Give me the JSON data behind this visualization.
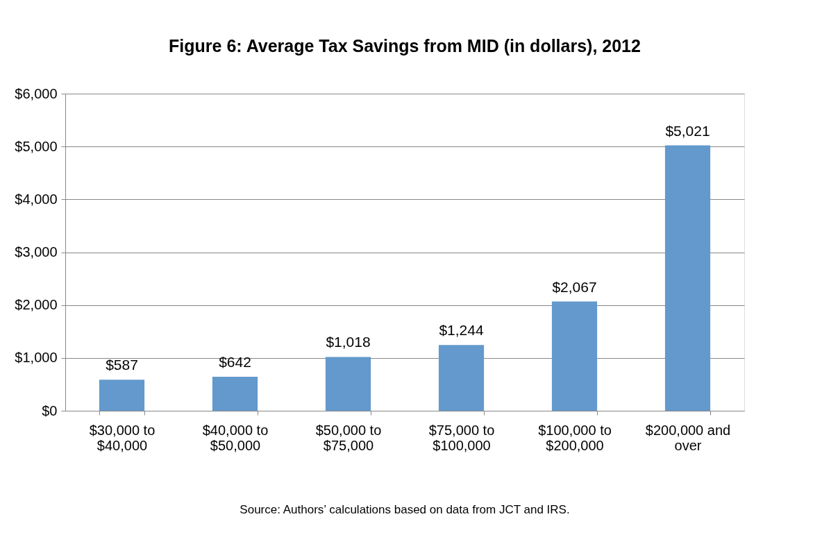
{
  "chart_data": {
    "type": "bar",
    "title": "Figure 6: Average Tax Savings from MID (in dollars), 2012",
    "categories": [
      "$30,000 to $40,000",
      "$40,000 to $50,000",
      "$50,000 to $75,000",
      "$75,000 to $100,000",
      "$100,000 to $200,000",
      "$200,000 and over"
    ],
    "values": [
      587,
      642,
      1018,
      1244,
      2067,
      5021
    ],
    "value_labels": [
      "$587",
      "$642",
      "$1,018",
      "$1,244",
      "$2,067",
      "$5,021"
    ],
    "color": "#6399cc",
    "ylim": [
      0,
      6000
    ],
    "yticks": [
      {
        "value": 0,
        "label": "$0"
      },
      {
        "value": 1000,
        "label": "$1,000"
      },
      {
        "value": 2000,
        "label": "$2,000"
      },
      {
        "value": 3000,
        "label": "$3,000"
      },
      {
        "value": 4000,
        "label": "$4,000"
      },
      {
        "value": 5000,
        "label": "$5,000"
      },
      {
        "value": 6000,
        "label": "$6,000"
      }
    ],
    "grid": "y",
    "annotations": [
      "Source: Authors’ calculations based on data from JCT and IRS."
    ]
  }
}
